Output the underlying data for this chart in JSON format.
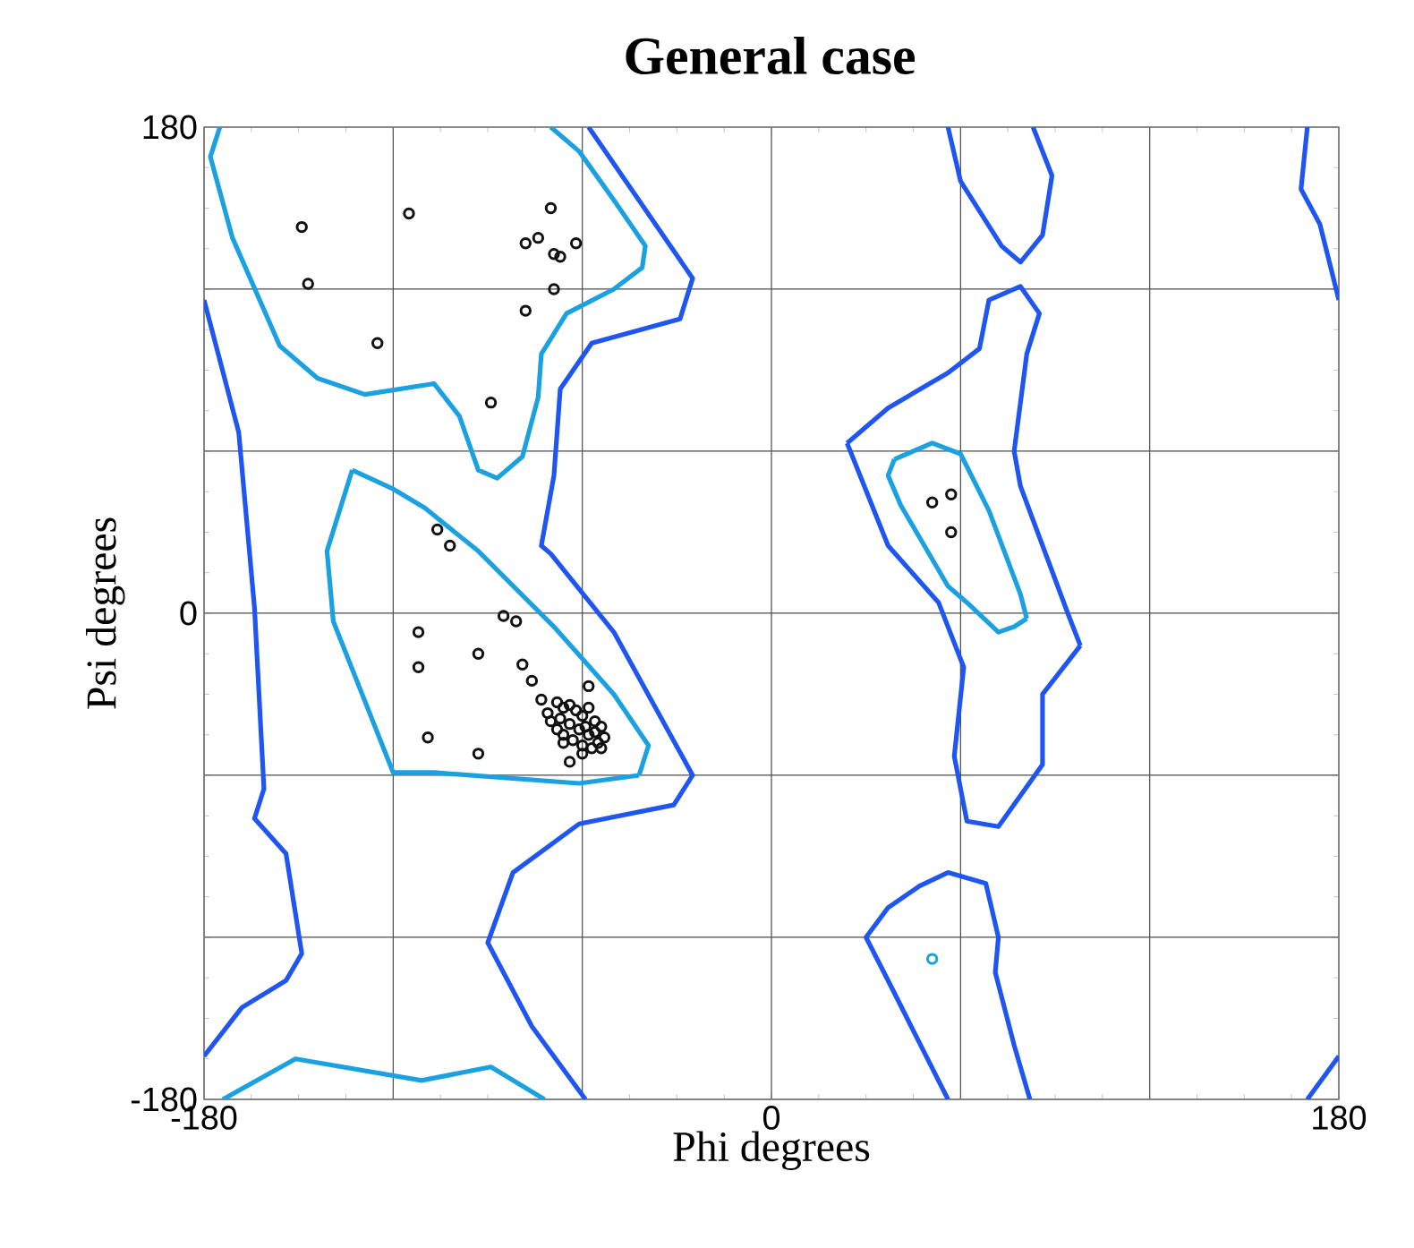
{
  "chart_data": {
    "type": "scatter",
    "title": "General case",
    "xlabel": "Phi degrees",
    "ylabel": "Psi degrees",
    "xlim": [
      -180,
      180
    ],
    "ylim": [
      -180,
      180
    ],
    "xticks": [
      -180,
      {
        "value": -120,
        "label": null
      },
      {
        "value": -60,
        "label": null
      },
      0,
      {
        "value": 60,
        "label": null
      },
      {
        "value": 120,
        "label": null
      },
      180
    ],
    "yticks": [
      -180,
      {
        "value": -120,
        "label": null
      },
      {
        "value": -60,
        "label": null
      },
      0,
      {
        "value": 60,
        "label": null
      },
      {
        "value": 120,
        "label": null
      },
      180
    ],
    "grid": true,
    "series": [
      {
        "marker": "circle",
        "color": "#111111",
        "x": [
          -149,
          -147,
          -115,
          -125,
          -70,
          -74,
          -78,
          -69,
          -67,
          -62,
          -69,
          -78,
          -89,
          -106,
          -102,
          -85,
          -81,
          -112,
          -112,
          -93,
          -79,
          -76,
          -73,
          -58,
          -109,
          -93,
          -64,
          51,
          57,
          57,
          -68,
          -66,
          -64,
          -62,
          -60,
          -58,
          -56,
          -54,
          -53,
          -55,
          -57,
          -60,
          -63,
          -66,
          -68,
          -70,
          -67,
          -64,
          -61,
          -58,
          -59,
          -56,
          -60,
          -54,
          -66,
          -71
        ],
        "values": [
          143,
          122,
          148,
          100,
          150,
          139,
          137,
          133,
          132,
          137,
          120,
          112,
          78,
          31,
          25,
          -1,
          -3,
          -7,
          -20,
          -15,
          -19,
          -25,
          -32,
          -27,
          -46,
          -52,
          -55,
          41,
          44,
          30,
          -33,
          -35,
          -34,
          -36,
          -38,
          -35,
          -40,
          -42,
          -46,
          -48,
          -50,
          -49,
          -47,
          -45,
          -43,
          -40,
          -39,
          -41,
          -43,
          -45,
          -42,
          -44,
          -52,
          -50,
          -48,
          -37
        ]
      },
      {
        "type": "line",
        "color": "#1ba1e2",
        "x": [
          -175,
          -178,
          -171,
          -156,
          -144,
          -129,
          -107,
          -99,
          -93,
          -87,
          -79,
          -74,
          -73,
          -65,
          -50,
          -41,
          -40,
          -50,
          -61,
          -70
        ],
        "values": [
          180,
          169,
          139,
          99,
          87,
          81,
          85,
          73,
          53,
          50,
          58,
          80,
          96,
          111,
          120,
          128,
          136,
          153,
          171,
          180
        ]
      },
      {
        "type": "line",
        "color": "#1ba1e2",
        "x": [
          -174,
          -151,
          -111,
          -89,
          -72
        ],
        "values": [
          -180,
          -165,
          -173,
          -168,
          -180
        ]
      },
      {
        "type": "line",
        "color": "#1ba1e2",
        "x": [
          -133,
          -141,
          -139,
          -120,
          -107,
          -61,
          -42
        ],
        "values": [
          53,
          23,
          -3,
          -59,
          -59,
          -63,
          -60
        ]
      },
      {
        "type": "line",
        "color": "#1ba1e2",
        "x": [
          -42,
          -39,
          -50,
          -69,
          -93,
          -110,
          -120,
          -133
        ],
        "values": [
          -60,
          -49,
          -30,
          -5,
          23,
          39,
          46,
          53
        ]
      },
      {
        "type": "line",
        "color": "#1ba1e2",
        "x": [
          39,
          51,
          60,
          69,
          79,
          81
        ],
        "values": [
          57,
          63,
          59,
          38,
          7,
          -2
        ]
      },
      {
        "type": "line",
        "color": "#1ba1e2",
        "x": [
          81,
          77,
          72,
          62,
          56,
          41,
          37,
          39
        ],
        "values": [
          -2,
          -5,
          -7,
          4,
          10,
          40,
          51,
          57
        ]
      },
      {
        "marker": "circle",
        "color": "#1ba1e2",
        "x": [
          51
        ],
        "values": [
          -128
        ]
      },
      {
        "type": "line",
        "color": "#1f55f0",
        "x": [
          -180,
          -169,
          -164,
          -161,
          -164,
          -154,
          -149,
          -154,
          -168,
          -180
        ],
        "values": [
          116,
          67,
          2,
          -65,
          -76,
          -89,
          -126,
          -136,
          -146,
          -164
        ]
      },
      {
        "type": "line",
        "color": "#1f55f0",
        "x": [
          -58,
          -25,
          -29,
          -57,
          -67,
          -69,
          -73,
          -70,
          -50,
          -25,
          -31,
          -61,
          -82,
          -90,
          -76,
          -59
        ],
        "values": [
          180,
          124,
          109,
          100,
          83,
          51,
          25,
          22,
          -7,
          -60,
          -71,
          -78,
          -96,
          -122,
          -153,
          -180
        ]
      },
      {
        "type": "line",
        "color": "#1f55f0",
        "x": [
          56,
          60,
          73,
          79,
          86,
          89,
          83
        ],
        "values": [
          180,
          160,
          136,
          130,
          140,
          162,
          180
        ]
      },
      {
        "type": "line",
        "color": "#1f55f0",
        "x": [
          24,
          37,
          56,
          66,
          69,
          79,
          85,
          81,
          77,
          79,
          94,
          98
        ],
        "values": [
          63,
          76,
          89,
          98,
          116,
          121,
          111,
          96,
          60,
          47,
          0,
          -12
        ]
      },
      {
        "type": "line",
        "color": "#1f55f0",
        "x": [
          98,
          86,
          86,
          72,
          62,
          58,
          61,
          53,
          37,
          24
        ],
        "values": [
          -12,
          -30,
          -56,
          -79,
          -77,
          -53,
          -20,
          4,
          25,
          63
        ]
      },
      {
        "type": "line",
        "color": "#1f55f0",
        "x": [
          56,
          37,
          30,
          37,
          47,
          56,
          68,
          72,
          71,
          77,
          82
        ],
        "values": [
          -180,
          -136,
          -120,
          -109,
          -101,
          -96,
          -100,
          -120,
          -133,
          -160,
          -180
        ]
      },
      {
        "type": "line",
        "color": "#1f55f0",
        "x": [
          170,
          168,
          174,
          180
        ],
        "values": [
          180,
          157,
          144,
          116
        ]
      },
      {
        "type": "line",
        "color": "#1f55f0",
        "x": [
          170,
          180
        ],
        "values": [
          -180,
          -164
        ]
      }
    ]
  }
}
